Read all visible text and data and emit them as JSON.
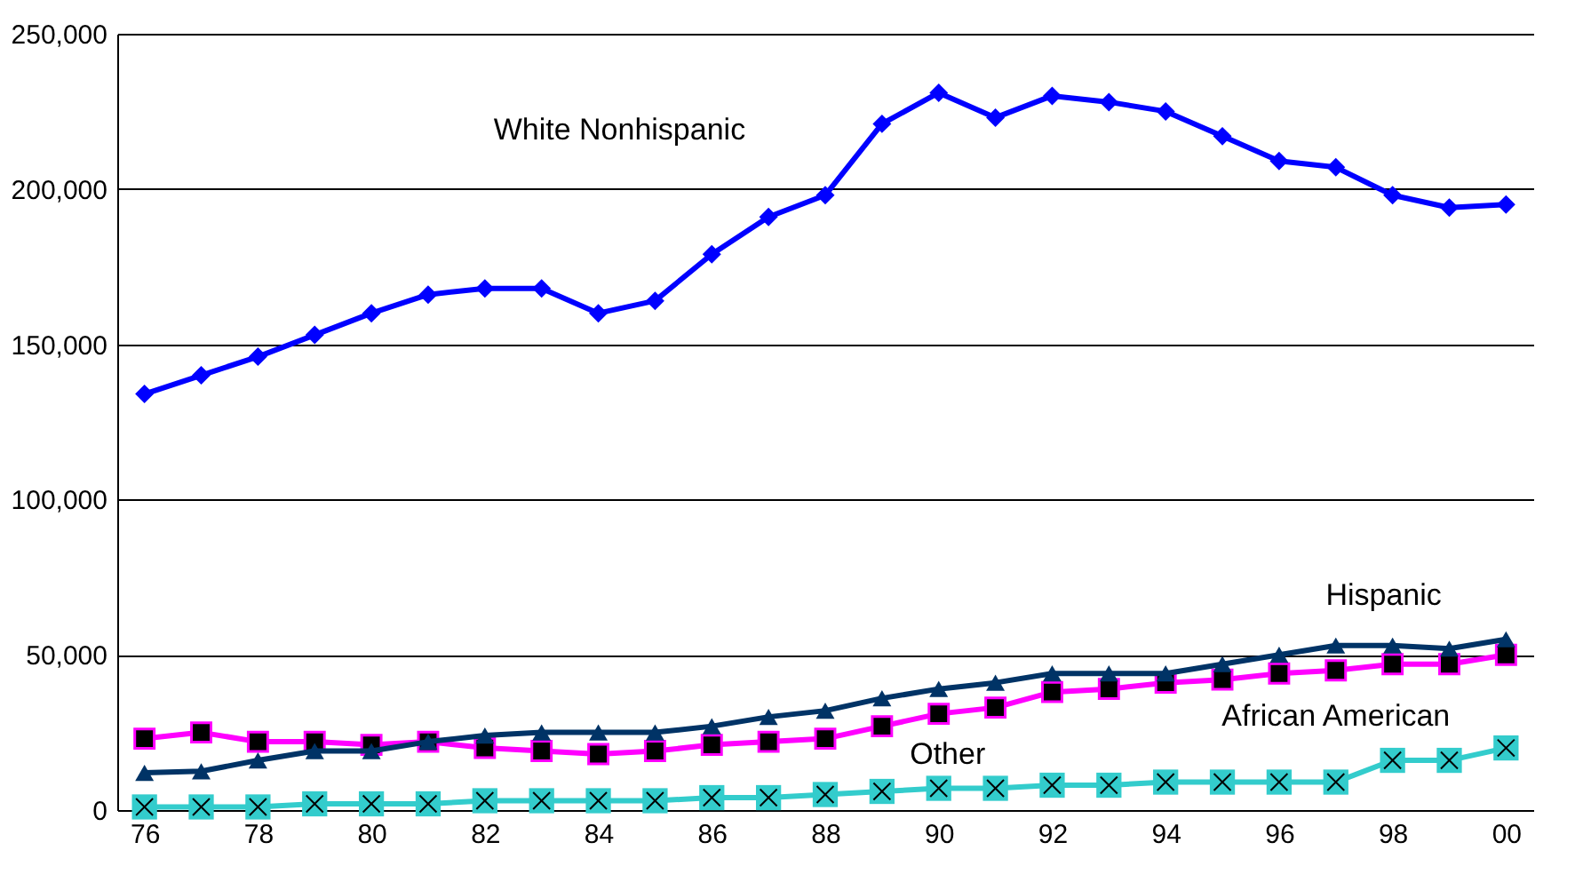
{
  "chart_data": {
    "type": "line",
    "categories": [
      "76",
      null,
      "78",
      null,
      "80",
      null,
      "82",
      null,
      "84",
      null,
      "86",
      null,
      "88",
      null,
      "90",
      null,
      "92",
      null,
      "94",
      null,
      "96",
      null,
      "98",
      null,
      "00"
    ],
    "ylim": [
      0,
      250000
    ],
    "yticks": [
      0,
      {
        "value": 50000,
        "label": "50,000"
      },
      {
        "value": 100000,
        "label": "100,000"
      },
      {
        "value": 150000,
        "label": "150,000"
      },
      {
        "value": 200000,
        "label": "200,000"
      },
      {
        "value": 250000,
        "label": "250,000"
      }
    ],
    "grid": "y",
    "legend": false,
    "series": [
      {
        "name": "White Nonhispanic",
        "color": "#0000ff",
        "marker": "diamond",
        "values": [
          134000,
          140000,
          146000,
          153000,
          160000,
          166000,
          168000,
          168000,
          160000,
          164000,
          179000,
          191000,
          198000,
          221000,
          231000,
          223000,
          230000,
          228000,
          225000,
          217000,
          209000,
          207000,
          198000,
          194000,
          195000
        ]
      },
      {
        "name": "Hispanic",
        "color": "#003366",
        "marker": "triangle",
        "values": [
          12000,
          12500,
          16000,
          19000,
          19000,
          22000,
          24000,
          25000,
          25000,
          25000,
          27000,
          30000,
          32000,
          36000,
          39000,
          41000,
          44000,
          44000,
          44000,
          47000,
          50000,
          53000,
          53000,
          52000,
          55000
        ]
      },
      {
        "name": "African American",
        "color": "#ff00ff",
        "marker": "square",
        "values": [
          23000,
          25000,
          22000,
          22000,
          21000,
          22000,
          20000,
          19000,
          18000,
          19000,
          21000,
          22000,
          23000,
          27000,
          31000,
          33000,
          38000,
          39000,
          41000,
          42000,
          44000,
          45000,
          47000,
          47000,
          50000
        ]
      },
      {
        "name": "Other",
        "color": "#33cccc",
        "marker": "square",
        "values": [
          1000,
          1000,
          1000,
          2000,
          2000,
          2000,
          3000,
          3000,
          3000,
          3000,
          4000,
          4000,
          5000,
          6000,
          7000,
          7000,
          8000,
          8000,
          9000,
          9000,
          9000,
          9000,
          16000,
          16000,
          20000
        ]
      }
    ]
  }
}
